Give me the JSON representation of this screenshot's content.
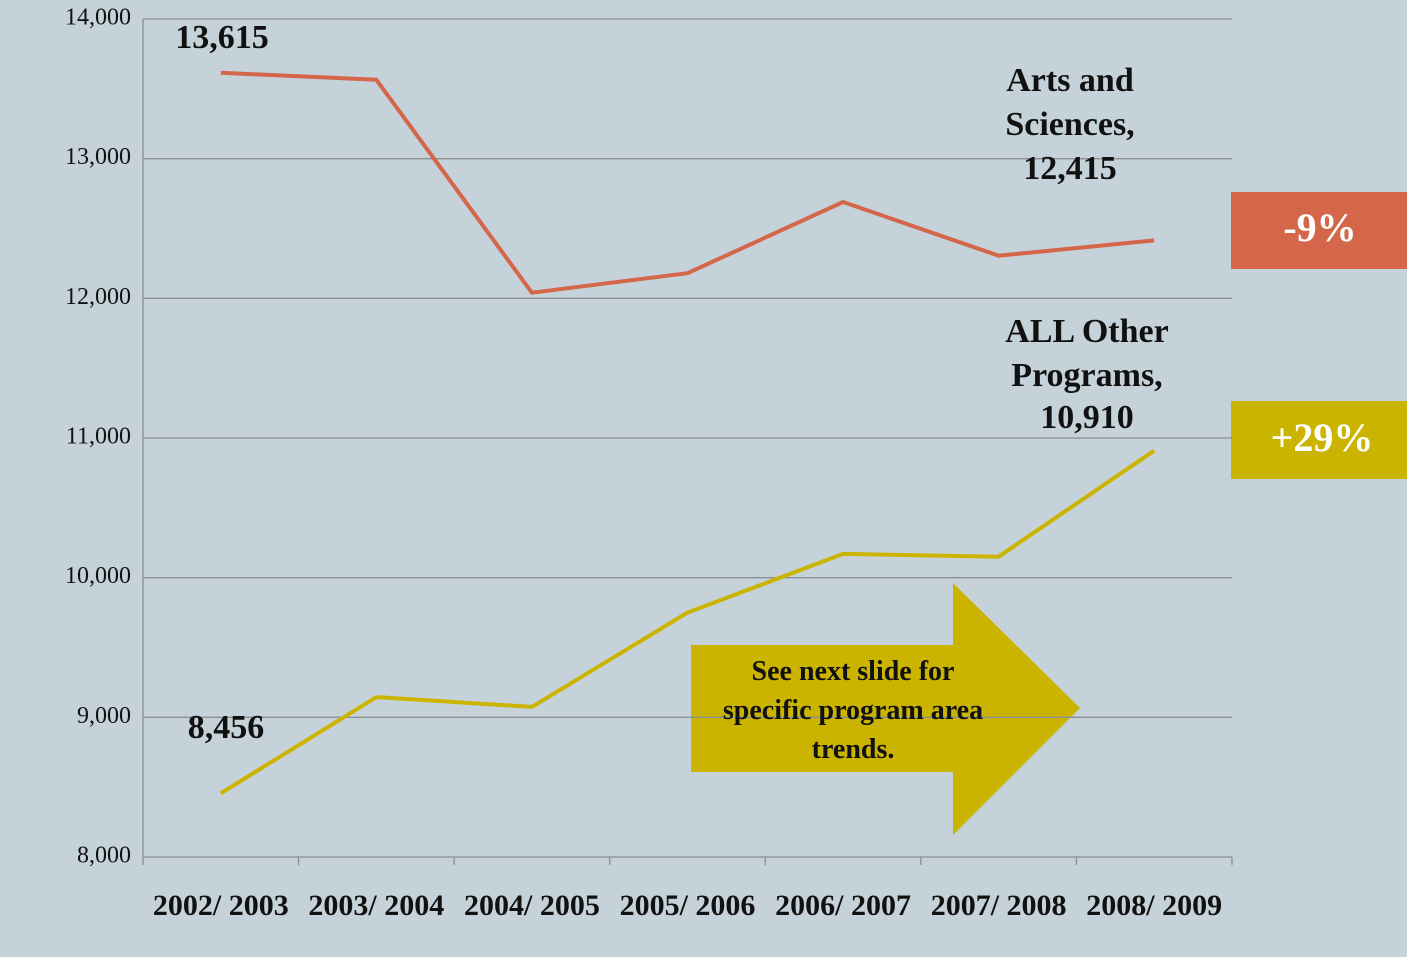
{
  "chart_data": {
    "type": "line",
    "categories": [
      "2002/ 2003",
      "2003/ 2004",
      "2004/ 2005",
      "2005/ 2006",
      "2006/ 2007",
      "2007/ 2008",
      "2008/ 2009"
    ],
    "series": [
      {
        "name": "Arts and Sciences,",
        "color": "#d4664a",
        "values": [
          13615,
          13565,
          12040,
          12180,
          12690,
          12305,
          12415
        ],
        "value_labels": [
          "13,615",
          null,
          null,
          null,
          null,
          null,
          "12,415"
        ]
      },
      {
        "name": "ALL Other Programs,",
        "color": "#cbb400",
        "values": [
          8456,
          9145,
          9075,
          9750,
          10170,
          10150,
          10910
        ],
        "value_labels": [
          "8,456",
          null,
          null,
          null,
          null,
          null,
          "10,910"
        ]
      }
    ],
    "ylim": [
      8000,
      14000
    ],
    "yticks": [
      {
        "value": 8000,
        "label": "8,000"
      },
      {
        "value": 9000,
        "label": "9,000"
      },
      {
        "value": 10000,
        "label": "10,000"
      },
      {
        "value": 11000,
        "label": "11,000"
      },
      {
        "value": 12000,
        "label": "12,000"
      },
      {
        "value": 13000,
        "label": "13,000"
      },
      {
        "value": 14000,
        "label": "14,000"
      }
    ],
    "grid": true,
    "annotations": [
      {
        "text": "-9%",
        "color": "#d4664a"
      },
      {
        "text": "+29%",
        "color": "#cbb400"
      },
      {
        "text": "See next slide for specific program area trends.",
        "color": "#cbb400"
      }
    ]
  }
}
